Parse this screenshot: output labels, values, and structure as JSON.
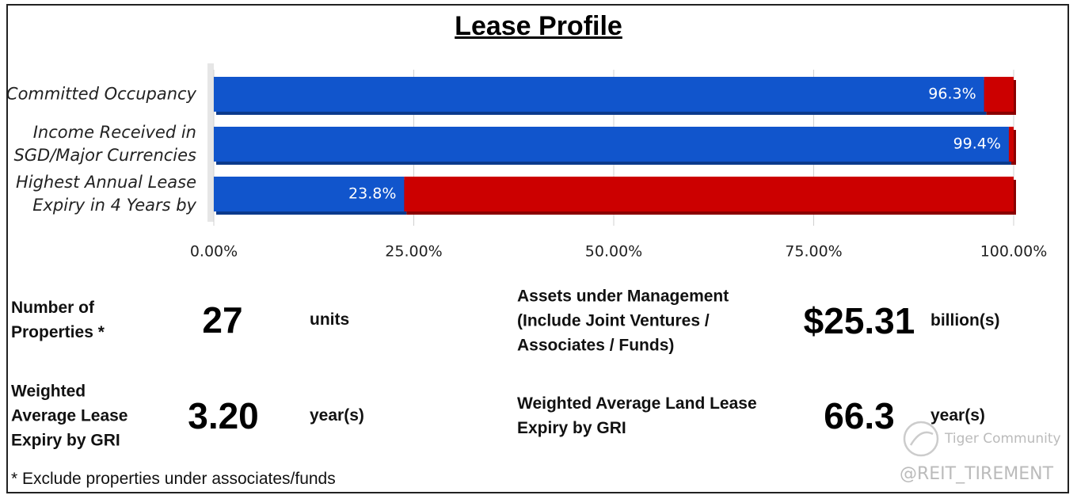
{
  "chart_data": {
    "type": "stacked-bar-horizontal",
    "title": "Lease Profile",
    "categories": [
      "Committed Occupancy",
      "Income Received in\nSGD/Major Currencies",
      "Highest Annual Lease\nExpiry in 4 Years by"
    ],
    "series": [
      {
        "color": "#1155cc",
        "values": [
          96.3,
          99.4,
          23.8
        ],
        "value_labels": [
          "96.3%",
          "99.4%",
          "23.8%"
        ]
      },
      {
        "color": "#cc0000",
        "values": [
          3.7,
          0.6,
          76.2
        ]
      }
    ],
    "xlim": [
      0,
      100
    ],
    "xticks": [
      {
        "value": 0,
        "label": "0.00%"
      },
      {
        "value": 25,
        "label": "25.00%"
      },
      {
        "value": 50,
        "label": "50.00%"
      },
      {
        "value": 75,
        "label": "75.00%"
      },
      {
        "value": 100,
        "label": "100.00%"
      }
    ],
    "grid": true
  },
  "stats": [
    {
      "label": "Number of\nProperties *",
      "value": "27",
      "unit": "units"
    },
    {
      "label": "Assets under Management\n(Include Joint Ventures /\nAssociates / Funds)",
      "value": "$25.31",
      "unit": "billion(s)"
    },
    {
      "label": "Weighted\nAverage Lease\nExpiry by GRI",
      "value": "3.20",
      "unit": "year(s)"
    },
    {
      "label": "Weighted Average Land Lease\nExpiry by GRI",
      "value": "66.3",
      "unit": "year(s)"
    }
  ],
  "footnote": "* Exclude properties under associates/funds",
  "watermark": {
    "brand": "Tiger Community",
    "handle": "@REIT_TIREMENT"
  }
}
